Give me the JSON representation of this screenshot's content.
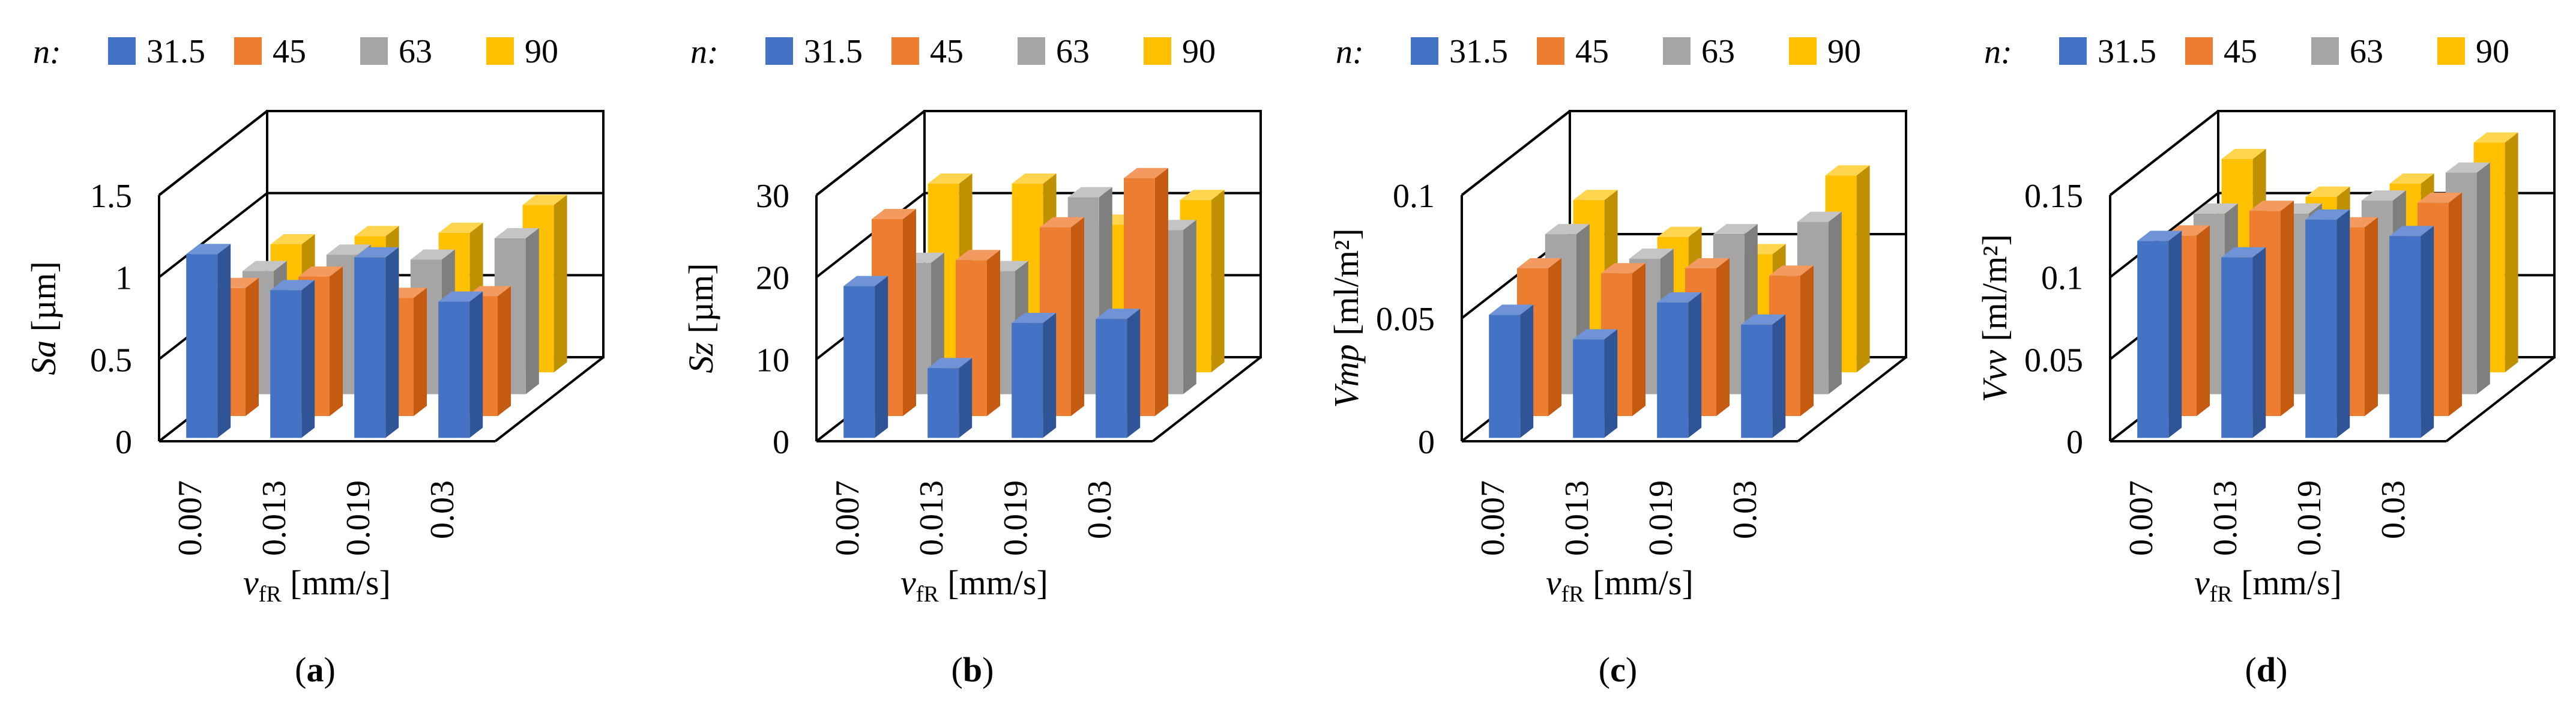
{
  "legend_label": "n:",
  "categories": [
    "0.007",
    "0.013",
    "0.019",
    "0.03"
  ],
  "series_names": [
    "31.5",
    "45",
    "63",
    "90"
  ],
  "colors": {
    "series": [
      "#4472c4",
      "#ed7d31",
      "#a5a5a5",
      "#ffc000"
    ],
    "series_dark": [
      "#2f5597",
      "#c55a11",
      "#7f7f7f",
      "#bf9000"
    ],
    "series_light": [
      "#6f93d6",
      "#f29a5f",
      "#c4c4c4",
      "#ffd54f"
    ],
    "axis": "#000000"
  },
  "chart_data": [
    {
      "type": "bar",
      "panel": "(a)",
      "panel_letter": "a",
      "ylabel_symbol": "Sa",
      "ylabel_unit": " [µm]",
      "xlabel_symbol": "v",
      "xlabel_sub": "fR",
      "xlabel_unit": " [mm/s]",
      "categories": [
        "0.007",
        "0.013",
        "0.019",
        "0.03"
      ],
      "ylim": [
        0,
        1.5
      ],
      "yticks": [
        0,
        0.5,
        1,
        1.5
      ],
      "ytick_labels": [
        "0",
        "0.5",
        "1",
        "1.5"
      ],
      "series": [
        {
          "name": "31.5",
          "values": [
            1.12,
            0.9,
            1.1,
            0.83
          ]
        },
        {
          "name": "45",
          "values": [
            0.78,
            0.85,
            0.72,
            0.73
          ]
        },
        {
          "name": "63",
          "values": [
            0.75,
            0.85,
            0.82,
            0.95
          ]
        },
        {
          "name": "90",
          "values": [
            0.78,
            0.83,
            0.85,
            1.02
          ]
        }
      ]
    },
    {
      "type": "bar",
      "panel": "(b)",
      "panel_letter": "b",
      "ylabel_symbol": "Sz",
      "ylabel_unit": " [µm]",
      "xlabel_symbol": "v",
      "xlabel_sub": "fR",
      "xlabel_unit": " [mm/s]",
      "categories": [
        "0.007",
        "0.013",
        "0.019",
        "0.03"
      ],
      "ylim": [
        0,
        30
      ],
      "yticks": [
        0,
        10,
        20,
        30
      ],
      "ytick_labels": [
        "0",
        "10",
        "20",
        "30"
      ],
      "series": [
        {
          "name": "31.5",
          "values": [
            18.5,
            8.5,
            14,
            14.5
          ]
        },
        {
          "name": "45",
          "values": [
            24,
            19,
            23,
            29
          ]
        },
        {
          "name": "63",
          "values": [
            16,
            15,
            24,
            20
          ]
        },
        {
          "name": "90",
          "values": [
            23,
            23,
            18,
            21
          ]
        }
      ]
    },
    {
      "type": "bar",
      "panel": "(c)",
      "panel_letter": "c",
      "ylabel_symbol": "Vmp",
      "ylabel_unit": " [ml/m²]",
      "xlabel_symbol": "v",
      "xlabel_sub": "fR",
      "xlabel_unit": " [mm/s]",
      "categories": [
        "0.007",
        "0.013",
        "0.019",
        "0.03"
      ],
      "ylim": [
        0,
        0.1
      ],
      "yticks": [
        0,
        0.05,
        0.1
      ],
      "ytick_labels": [
        "0",
        "0.05",
        "0.1"
      ],
      "series": [
        {
          "name": "31.5",
          "values": [
            0.05,
            0.04,
            0.055,
            0.046
          ]
        },
        {
          "name": "45",
          "values": [
            0.06,
            0.058,
            0.06,
            0.057
          ]
        },
        {
          "name": "63",
          "values": [
            0.065,
            0.055,
            0.065,
            0.07
          ]
        },
        {
          "name": "90",
          "values": [
            0.07,
            0.055,
            0.048,
            0.08
          ]
        }
      ]
    },
    {
      "type": "bar",
      "panel": "(d)",
      "panel_letter": "d",
      "ylabel_symbol": "Vvv",
      "ylabel_unit": " [ml/m²]",
      "xlabel_symbol": "v",
      "xlabel_sub": "fR",
      "xlabel_unit": " [mm/s]",
      "categories": [
        "0.007",
        "0.013",
        "0.019",
        "0.03"
      ],
      "ylim": [
        0,
        0.15
      ],
      "yticks": [
        0,
        0.05,
        0.1,
        0.15
      ],
      "ytick_labels": [
        "0",
        "0.05",
        "0.1",
        "0.15"
      ],
      "series": [
        {
          "name": "31.5",
          "values": [
            0.12,
            0.11,
            0.133,
            0.123
          ]
        },
        {
          "name": "45",
          "values": [
            0.11,
            0.125,
            0.115,
            0.13
          ]
        },
        {
          "name": "63",
          "values": [
            0.11,
            0.11,
            0.118,
            0.135
          ]
        },
        {
          "name": "90",
          "values": [
            0.13,
            0.107,
            0.115,
            0.14
          ]
        }
      ]
    }
  ]
}
